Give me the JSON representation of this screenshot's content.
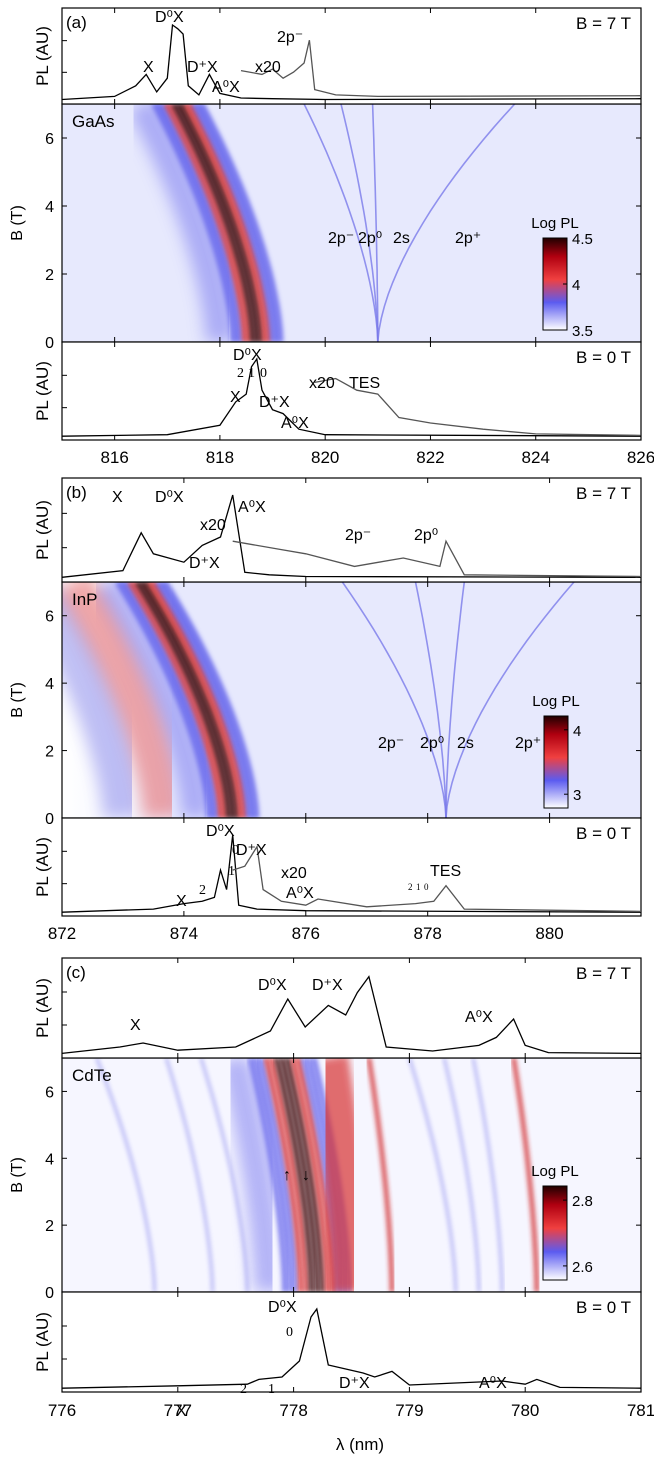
{
  "figure": {
    "x_axis_label": "λ (nm)",
    "panels": [
      {
        "letter": "(a)",
        "material": "GaAs",
        "x_ticks": [
          "816",
          "818",
          "820",
          "822",
          "824",
          "826"
        ],
        "b_ticks": [
          "0",
          "2",
          "4",
          "6"
        ],
        "top_label": "B = 7 T",
        "bottom_label": "B = 0 T",
        "pl_axis_label": "PL (AU)",
        "b_axis_label": "B (T)",
        "colorbar": {
          "title": "Log PL",
          "ticks": [
            "4.5",
            "4",
            "3.5"
          ]
        },
        "top_peaks": [
          "X",
          "D⁰X",
          "D⁺X",
          "A⁰X",
          "x20",
          "2p⁻"
        ],
        "map_labels": [
          "2p⁻",
          "2p⁰",
          "2s",
          "2p⁺"
        ],
        "bottom_peaks": [
          "D⁰X",
          "2",
          "1",
          "0",
          "X",
          "D⁺X",
          "A⁰X",
          "x20",
          "TES"
        ]
      },
      {
        "letter": "(b)",
        "material": "InP",
        "x_ticks": [
          "872",
          "874",
          "876",
          "878",
          "880"
        ],
        "b_ticks": [
          "0",
          "2",
          "4",
          "6"
        ],
        "top_label": "B = 7 T",
        "bottom_label": "B = 0 T",
        "pl_axis_label": "PL (AU)",
        "b_axis_label": "B (T)",
        "colorbar": {
          "title": "Log PL",
          "ticks": [
            "4",
            "3"
          ]
        },
        "top_peaks": [
          "X",
          "D⁰X",
          "D⁺X",
          "x20",
          "A⁰X",
          "2p⁻",
          "2p⁰"
        ],
        "map_labels": [
          "2p⁻",
          "2p⁰",
          "2s",
          "2p⁺"
        ],
        "bottom_peaks": [
          "D⁰X",
          "0",
          "1",
          "2",
          "X",
          "D⁺X",
          "x20",
          "A⁰X",
          "TES",
          "2",
          "1",
          "0"
        ]
      },
      {
        "letter": "(c)",
        "material": "CdTe",
        "x_ticks": [
          "776",
          "777",
          "778",
          "779",
          "780",
          "781"
        ],
        "b_ticks": [
          "0",
          "2",
          "4",
          "6"
        ],
        "top_label": "B = 7 T",
        "bottom_label": "B = 0 T",
        "pl_axis_label": "PL (AU)",
        "b_axis_label": "B (T)",
        "colorbar": {
          "title": "Log PL",
          "ticks": [
            "2.8",
            "2.6"
          ]
        },
        "top_peaks": [
          "X",
          "D⁰X",
          "D⁺X",
          "A⁰X"
        ],
        "map_labels": [
          "↑",
          "↓"
        ],
        "bottom_peaks": [
          "D⁰X",
          "0",
          "X",
          "2",
          "1",
          "D⁺X",
          "A⁰X"
        ]
      }
    ]
  },
  "chart_data": [
    {
      "type": "line",
      "panel": "(a)",
      "title": "",
      "xlabel": "λ (nm)",
      "ylabel": "PL (AU)",
      "xlim": [
        815,
        826
      ],
      "field": "B = 7 T",
      "series": [
        {
          "name": "",
          "x": [
            815.0,
            816.0,
            816.4,
            816.6,
            816.8,
            817.0,
            817.1,
            817.2,
            817.3,
            817.4,
            817.6,
            817.8,
            818.0,
            818.4,
            819.0,
            820.0,
            826.0
          ],
          "values": [
            0.02,
            0.06,
            0.2,
            0.35,
            0.12,
            0.3,
            1.0,
            0.95,
            0.88,
            0.2,
            0.08,
            0.35,
            0.1,
            0.04,
            0.03,
            0.02,
            0.03
          ]
        },
        {
          "name": "x20",
          "x": [
            818.4,
            818.8,
            819.0,
            819.2,
            819.4,
            819.6,
            819.7,
            819.8,
            820.2,
            821.0,
            826.0
          ],
          "values": [
            0.4,
            0.35,
            0.42,
            0.3,
            0.38,
            0.5,
            0.8,
            0.15,
            0.08,
            0.06,
            0.07
          ]
        }
      ]
    },
    {
      "type": "heatmap",
      "panel": "(a)",
      "material": "GaAs",
      "xlabel": "λ (nm)",
      "ylabel": "B (T)",
      "xlim": [
        815,
        826
      ],
      "ylim": [
        0,
        7
      ],
      "colorbar": {
        "label": "Log PL",
        "range": [
          3.5,
          4.5
        ]
      },
      "lines": [
        {
          "label": "D⁰X",
          "x_at_B0": 818.7,
          "x_at_B7": 817.2
        },
        {
          "label": "2p⁻",
          "x_at_B0": 821.0,
          "x_at_B7": 819.6
        },
        {
          "label": "2p⁰",
          "x_at_B0": 821.0,
          "x_at_B7": 820.3
        },
        {
          "label": "2s",
          "x_at_B0": 821.0,
          "x_at_B7": 820.9
        },
        {
          "label": "2p⁺",
          "x_at_B0": 821.0,
          "x_at_B7": 823.6
        }
      ]
    },
    {
      "type": "line",
      "panel": "(a)",
      "xlabel": "λ (nm)",
      "ylabel": "PL (AU)",
      "xlim": [
        815,
        826
      ],
      "field": "B = 0 T",
      "series": [
        {
          "name": "",
          "x": [
            815.0,
            817.0,
            818.0,
            818.3,
            818.5,
            818.6,
            818.7,
            818.8,
            819.0,
            819.2,
            819.5,
            820.0,
            826.0
          ],
          "values": [
            0.01,
            0.03,
            0.15,
            0.45,
            0.55,
            0.9,
            1.0,
            0.6,
            0.35,
            0.3,
            0.1,
            0.03,
            0.01
          ]
        },
        {
          "name": "x20",
          "x": [
            819.8,
            820.2,
            820.6,
            821.0,
            821.4,
            822.0,
            823.0,
            824.0,
            826.0
          ],
          "values": [
            0.7,
            0.75,
            0.6,
            0.55,
            0.25,
            0.18,
            0.1,
            0.04,
            0.02
          ]
        }
      ]
    },
    {
      "type": "line",
      "panel": "(b)",
      "xlabel": "λ (nm)",
      "ylabel": "PL (AU)",
      "xlim": [
        872,
        881.5
      ],
      "field": "B = 7 T",
      "series": [
        {
          "name": "",
          "x": [
            872.0,
            873.0,
            873.3,
            873.5,
            874.0,
            874.3,
            874.6,
            874.8,
            875.0,
            875.4,
            876.0,
            881.5
          ],
          "values": [
            0.02,
            0.1,
            0.55,
            0.3,
            0.2,
            0.4,
            0.5,
            1.0,
            0.08,
            0.05,
            0.03,
            0.02
          ]
        },
        {
          "name": "x20",
          "x": [
            874.8,
            875.6,
            876.0,
            876.8,
            877.2,
            877.6,
            878.2,
            878.3,
            878.6,
            881.5
          ],
          "values": [
            0.45,
            0.35,
            0.3,
            0.15,
            0.2,
            0.25,
            0.15,
            0.45,
            0.05,
            0.03
          ]
        }
      ]
    },
    {
      "type": "heatmap",
      "panel": "(b)",
      "material": "InP",
      "xlabel": "λ (nm)",
      "ylabel": "B (T)",
      "xlim": [
        872,
        881.5
      ],
      "ylim": [
        0,
        7
      ],
      "colorbar": {
        "label": "Log PL",
        "range": [
          2.6,
          4.2
        ]
      },
      "lines": [
        {
          "label": "D⁰X",
          "x_at_B0": 874.8,
          "x_at_B7": 873.3
        },
        {
          "label": "2p⁻",
          "x_at_B0": 878.3,
          "x_at_B7": 876.6
        },
        {
          "label": "2p⁰",
          "x_at_B0": 878.3,
          "x_at_B7": 877.8
        },
        {
          "label": "2s",
          "x_at_B0": 878.3,
          "x_at_B7": 878.6
        },
        {
          "label": "2p⁺",
          "x_at_B0": 878.3,
          "x_at_B7": 880.4
        }
      ]
    },
    {
      "type": "line",
      "panel": "(b)",
      "xlabel": "λ (nm)",
      "ylabel": "PL (AU)",
      "xlim": [
        872,
        881.5
      ],
      "field": "B = 0 T",
      "series": [
        {
          "name": "",
          "x": [
            872.0,
            873.5,
            874.0,
            874.3,
            874.5,
            874.6,
            874.7,
            874.8,
            874.9,
            875.2,
            876.0,
            881.5
          ],
          "values": [
            0.01,
            0.05,
            0.12,
            0.15,
            0.2,
            0.55,
            0.3,
            1.0,
            0.1,
            0.05,
            0.03,
            0.01
          ]
        },
        {
          "name": "x20",
          "x": [
            874.8,
            875.0,
            875.2,
            875.3,
            875.6,
            876.0,
            876.2,
            877.0,
            877.8,
            878.1,
            878.3,
            878.6,
            881.5
          ],
          "values": [
            0.55,
            0.6,
            0.85,
            0.3,
            0.15,
            0.1,
            0.18,
            0.08,
            0.12,
            0.15,
            0.35,
            0.05,
            0.02
          ]
        }
      ]
    },
    {
      "type": "line",
      "panel": "(c)",
      "xlabel": "λ (nm)",
      "ylabel": "PL (AU)",
      "xlim": [
        776,
        781
      ],
      "field": "B = 7 T",
      "series": [
        {
          "name": "",
          "x": [
            776.0,
            776.5,
            776.7,
            777.0,
            777.5,
            777.8,
            777.95,
            778.1,
            778.3,
            778.45,
            778.55,
            778.65,
            778.8,
            779.2,
            779.6,
            779.75,
            779.9,
            780.0,
            780.2,
            781.0
          ],
          "values": [
            0.02,
            0.1,
            0.15,
            0.06,
            0.1,
            0.3,
            0.7,
            0.35,
            0.62,
            0.5,
            0.78,
            0.98,
            0.1,
            0.05,
            0.12,
            0.22,
            0.45,
            0.12,
            0.03,
            0.02
          ]
        }
      ]
    },
    {
      "type": "heatmap",
      "panel": "(c)",
      "material": "CdTe",
      "xlabel": "λ (nm)",
      "ylabel": "B (T)",
      "xlim": [
        776,
        781
      ],
      "ylim": [
        0,
        7
      ],
      "colorbar": {
        "label": "Log PL",
        "range": [
          2.5,
          2.9
        ]
      },
      "lines": [
        {
          "label": "D⁰X",
          "x_at_B0": 778.2,
          "x_at_B7": 777.9
        },
        {
          "label": "D⁺X",
          "x_at_B0": 778.85,
          "x_at_B7": 778.65
        },
        {
          "label": "A⁰X",
          "x_at_B0": 780.1,
          "x_at_B7": 779.9
        }
      ]
    },
    {
      "type": "line",
      "panel": "(c)",
      "xlabel": "λ (nm)",
      "ylabel": "PL (AU)",
      "xlim": [
        776,
        781
      ],
      "field": "B = 0 T",
      "series": [
        {
          "name": "",
          "x": [
            776.0,
            777.0,
            777.6,
            777.7,
            777.9,
            778.05,
            778.15,
            778.2,
            778.3,
            778.6,
            778.7,
            778.85,
            779.0,
            779.8,
            779.9,
            780.0,
            780.1,
            780.3,
            781.0
          ],
          "values": [
            0.01,
            0.04,
            0.06,
            0.12,
            0.15,
            0.35,
            0.9,
            1.0,
            0.3,
            0.2,
            0.15,
            0.22,
            0.05,
            0.1,
            0.08,
            0.06,
            0.12,
            0.02,
            0.01
          ]
        }
      ]
    }
  ]
}
